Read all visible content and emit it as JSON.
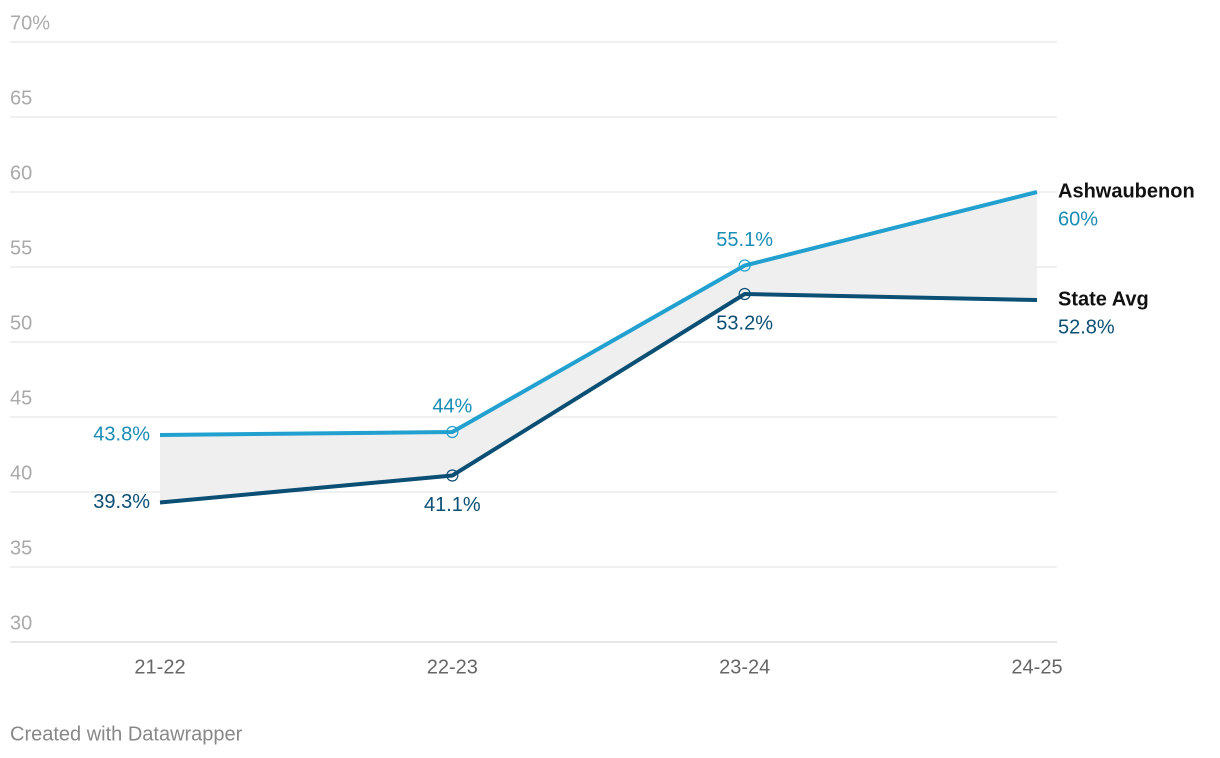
{
  "chart_data": {
    "type": "line",
    "categories": [
      "21-22",
      "22-23",
      "23-24",
      "24-25"
    ],
    "series": [
      {
        "name": "Ashwaubenon",
        "color": "#22a0cf",
        "label_color": "#1a8db6",
        "values": [
          43.8,
          44,
          55.1,
          60
        ],
        "value_labels": [
          "43.8%",
          "44%",
          "55.1%",
          "60%"
        ]
      },
      {
        "name": "State Avg",
        "color": "#0b4f74",
        "label_color": "#0b4f74",
        "values": [
          39.3,
          41.1,
          53.2,
          52.8
        ],
        "value_labels": [
          "39.3%",
          "41.1%",
          "53.2%",
          "52.8%"
        ]
      }
    ],
    "ylim": [
      30,
      70
    ],
    "yticks": [
      30,
      35,
      40,
      45,
      50,
      55,
      60,
      65,
      {
        "value": 70,
        "label": "70%"
      }
    ],
    "grid": true,
    "fill_between": "#efefef",
    "footer": "Created with Datawrapper"
  }
}
